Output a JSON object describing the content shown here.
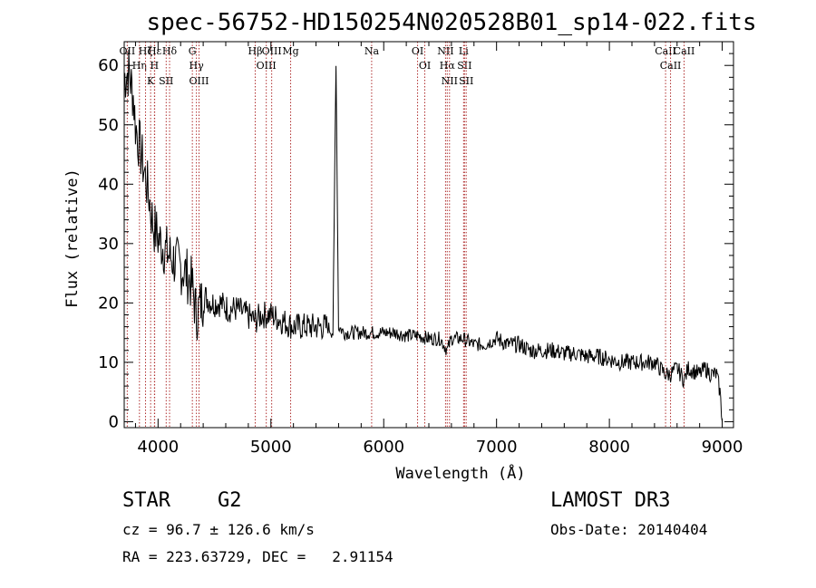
{
  "chart_data": {
    "type": "line",
    "title": "spec-56752-HD150254N020528B01_sp14-022.fits",
    "xlabel": "Wavelength (Å)",
    "ylabel": "Flux (relative)",
    "xlim": [
      3700,
      9100
    ],
    "ylim": [
      -1,
      64
    ],
    "xticks": [
      4000,
      5000,
      6000,
      7000,
      8000,
      9000
    ],
    "yticks": [
      0,
      10,
      20,
      30,
      40,
      50,
      60
    ],
    "series": [
      {
        "name": "flux",
        "x": [
          3700,
          3740,
          3780,
          3800,
          3820,
          3840,
          3860,
          3880,
          3900,
          3920,
          3940,
          3960,
          3980,
          4000,
          4030,
          4060,
          4100,
          4150,
          4200,
          4250,
          4300,
          4340,
          4380,
          4420,
          4480,
          4550,
          4620,
          4700,
          4780,
          4860,
          4920,
          5000,
          5100,
          5200,
          5300,
          5400,
          5500,
          5550,
          5577,
          5600,
          5650,
          5700,
          5800,
          5900,
          6000,
          6100,
          6200,
          6300,
          6400,
          6500,
          6563,
          6600,
          6700,
          6800,
          6900,
          7000,
          7100,
          7200,
          7300,
          7400,
          7500,
          7600,
          7700,
          7800,
          7900,
          8000,
          8100,
          8200,
          8300,
          8400,
          8498,
          8542,
          8600,
          8662,
          8700,
          8800,
          8850,
          8900,
          8950,
          8980,
          9000
        ],
        "y": [
          58,
          59,
          55,
          50,
          48,
          46,
          44,
          42,
          40,
          38,
          35,
          33,
          32,
          31,
          30,
          29,
          28,
          27,
          26,
          25,
          23,
          18,
          20,
          21,
          20,
          20,
          19,
          19,
          18,
          17,
          18,
          18,
          17,
          16,
          16,
          16,
          16,
          15,
          61,
          16,
          15,
          15,
          15,
          15,
          15,
          15,
          14.5,
          14.5,
          14,
          14,
          12,
          14,
          14,
          13,
          13,
          14,
          13,
          13,
          12,
          12,
          12,
          11.5,
          11.5,
          11,
          11,
          10.5,
          10,
          10,
          10,
          10,
          8,
          8,
          9,
          7,
          9,
          8,
          9,
          8,
          8,
          5,
          0
        ]
      }
    ],
    "spectral_lines": [
      {
        "label": "Hα",
        "wavelength": 6563
      },
      {
        "label": "Hβ",
        "wavelength": 4861
      },
      {
        "label": "Hγ",
        "wavelength": 4340
      },
      {
        "label": "Hδ",
        "wavelength": 4102
      },
      {
        "label": "Hε",
        "wavelength": 3970
      },
      {
        "label": "Hζ",
        "wavelength": 3889
      },
      {
        "label": "Hη",
        "wavelength": 3835
      },
      {
        "label": "K",
        "wavelength": 3934
      },
      {
        "label": "H",
        "wavelength": 3968
      },
      {
        "label": "G",
        "wavelength": 4304
      },
      {
        "label": "Mg",
        "wavelength": 5175
      },
      {
        "label": "Na",
        "wavelength": 5893
      },
      {
        "label": "OII",
        "wavelength": 3727
      },
      {
        "label": "OIII",
        "wavelength": 4363
      },
      {
        "label": "OIII",
        "wavelength": 4959
      },
      {
        "label": "OIII",
        "wavelength": 5007
      },
      {
        "label": "OI",
        "wavelength": 6300
      },
      {
        "label": "OI",
        "wavelength": 6364
      },
      {
        "label": "NII",
        "wavelength": 6548
      },
      {
        "label": "NII",
        "wavelength": 6583
      },
      {
        "label": "SII",
        "wavelength": 4072
      },
      {
        "label": "SII",
        "wavelength": 6716
      },
      {
        "label": "SII",
        "wavelength": 6731
      },
      {
        "label": "Li",
        "wavelength": 6708
      },
      {
        "label": "CaII",
        "wavelength": 8498
      },
      {
        "label": "CaII",
        "wavelength": 8542
      },
      {
        "label": "CaII",
        "wavelength": 8662
      }
    ]
  },
  "info": {
    "object_class": "STAR",
    "subclass": "G2",
    "survey": "LAMOST DR3",
    "cz_line": "cz = 96.7 ± 126.6 km/s",
    "obs_date": "Obs-Date: 20140404",
    "coords": "RA = 223.63729, DEC =   2.91154"
  }
}
